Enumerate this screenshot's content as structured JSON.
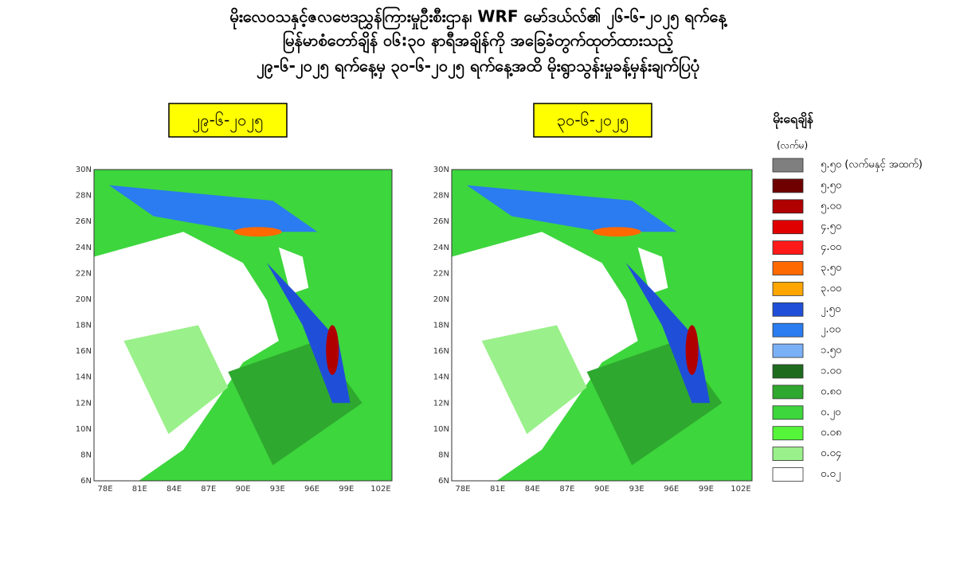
{
  "header": {
    "lines": [
      "မိုးလေဝသနှင့်ဇလဗေဒညွှန်ကြားမှုဦးစီးဌာန၊ WRF မော်ဒယ်လ်၏ ၂၆-၆-၂၀၂၅ ရက်နေ့",
      "မြန်မာစံတော်ချိန် ၀၆:၃၀ နာရီအချိန်ကို အခြေခံတွက်ထုတ်ထားသည့်",
      "၂၉-၆-၂၀၂၅ ရက်နေ့မှ ၃၀-၆-၂၀၂၅ ရက်နေ့အထိ မိုးရွာသွန်းမှုခန့်မှန်းချက်ပြပုံ"
    ]
  },
  "maps": [
    {
      "date": "၂၉-၆-၂၀၂၅"
    },
    {
      "date": "၃၀-၆-၂၀၂၅"
    }
  ],
  "axes": {
    "y_labels": [
      "30N",
      "28N",
      "26N",
      "24N",
      "22N",
      "20N",
      "18N",
      "16N",
      "14N",
      "12N",
      "10N",
      "8N",
      "6N"
    ],
    "x_labels": [
      "78E",
      "81E",
      "84E",
      "87E",
      "90E",
      "93E",
      "96E",
      "99E",
      "102E"
    ]
  },
  "legend": {
    "title": "မိုးရေချိန်",
    "unit": "(လက်မ)",
    "items": [
      {
        "label": "၅.၅၀ (လက်မနှင့် အထက်)",
        "color": "#7f7f7f"
      },
      {
        "label": "၅.၅၀",
        "color": "#6e0000"
      },
      {
        "label": "၅.၀၀",
        "color": "#b00000"
      },
      {
        "label": "၄.၅၀",
        "color": "#e00000"
      },
      {
        "label": "၄.၀၀",
        "color": "#ff1a1a"
      },
      {
        "label": "၃.၅၀",
        "color": "#ff6a00"
      },
      {
        "label": "၃.၀၀",
        "color": "#ffa500"
      },
      {
        "label": "၂.၅၀",
        "color": "#1f4fd8"
      },
      {
        "label": "၂.၀၀",
        "color": "#2a7cf0"
      },
      {
        "label": "၁.၅၀",
        "color": "#7ab0f5"
      },
      {
        "label": "၁.၀၀",
        "color": "#1e6b1e"
      },
      {
        "label": "၀.၈၀",
        "color": "#2fa82f"
      },
      {
        "label": "၀.၂၀",
        "color": "#3dd63d"
      },
      {
        "label": "၀.၀၈",
        "color": "#55f53a"
      },
      {
        "label": "၀.၀၄",
        "color": "#9af08a"
      },
      {
        "label": "၀.၀၂",
        "color": "#ffffff"
      }
    ]
  }
}
